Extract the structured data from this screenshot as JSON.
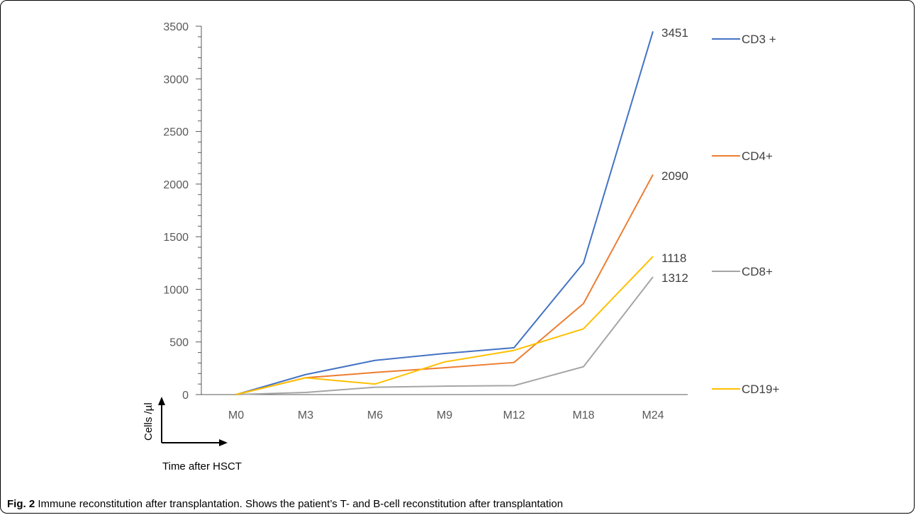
{
  "chart_data": {
    "type": "line",
    "categories": [
      "M0",
      "M3",
      "M6",
      "M9",
      "M12",
      "M18",
      "M24"
    ],
    "ylim": [
      0,
      3500
    ],
    "yticks": [
      0,
      500,
      1000,
      1500,
      2000,
      2500,
      3000,
      3500
    ],
    "grid": false,
    "legend_placement": "right",
    "series": [
      {
        "name": "CD3 +",
        "color": "#4472C4",
        "values": [
          0,
          190,
          325,
          390,
          445,
          1250,
          3451
        ],
        "end_label": "3451"
      },
      {
        "name": "CD4+",
        "color": "#ED7D31",
        "values": [
          0,
          160,
          210,
          255,
          305,
          865,
          2090
        ],
        "end_label": "2090"
      },
      {
        "name": "CD8+",
        "color": "#A5A5A5",
        "values": [
          0,
          20,
          70,
          80,
          85,
          265,
          1118
        ],
        "end_label": "1118"
      },
      {
        "name": "CD19+",
        "color": "#FFC000",
        "values": [
          0,
          160,
          100,
          310,
          420,
          625,
          1312
        ],
        "end_label": "1312"
      }
    ]
  },
  "axis_hint": {
    "y_text": "Cells /µl",
    "x_text": "Time after HSCT"
  },
  "caption": {
    "label": "Fig. 2",
    "text": " Immune reconstitution after transplantation. Shows the patient’s T- and B-cell reconstitution after transplantation"
  }
}
